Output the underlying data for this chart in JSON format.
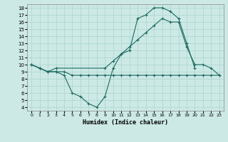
{
  "xlabel": "Humidex (Indice chaleur)",
  "bg_color": "#cce9e5",
  "grid_color": "#aad4ce",
  "line_color": "#1a6b60",
  "xlim": [
    -0.5,
    23.5
  ],
  "ylim": [
    3.5,
    18.5
  ],
  "xticks": [
    0,
    1,
    2,
    3,
    4,
    5,
    6,
    7,
    8,
    9,
    10,
    11,
    12,
    13,
    14,
    15,
    16,
    17,
    18,
    19,
    20,
    21,
    22,
    23
  ],
  "yticks": [
    4,
    5,
    6,
    7,
    8,
    9,
    10,
    11,
    12,
    13,
    14,
    15,
    16,
    17,
    18
  ],
  "curve1_x": [
    0,
    1,
    2,
    3,
    4,
    5,
    6,
    7,
    8,
    9,
    10,
    11,
    12,
    13,
    14,
    15,
    16,
    17,
    18,
    19,
    20
  ],
  "curve1_y": [
    10,
    9.5,
    9.0,
    9.0,
    8.5,
    6.0,
    5.5,
    4.5,
    4.0,
    5.5,
    9.5,
    11.5,
    12.0,
    16.5,
    17.0,
    18.0,
    18.0,
    17.5,
    16.5,
    13.0,
    9.5
  ],
  "curve2_x": [
    0,
    1,
    2,
    3,
    9,
    10,
    11,
    12,
    13,
    14,
    15,
    16,
    17,
    18,
    19,
    20,
    21,
    22,
    23
  ],
  "curve2_y": [
    10,
    9.5,
    9.0,
    9.5,
    9.5,
    10.5,
    11.5,
    12.5,
    13.5,
    14.5,
    15.5,
    16.5,
    16.0,
    16.0,
    12.5,
    10.0,
    10.0,
    9.5,
    8.5
  ],
  "curve3_x": [
    0,
    1,
    2,
    3,
    4,
    5,
    6,
    7,
    8,
    9,
    10,
    11,
    12,
    13,
    14,
    15,
    16,
    17,
    18,
    19,
    20,
    21,
    22,
    23
  ],
  "curve3_y": [
    10,
    9.5,
    9.0,
    9.0,
    9.0,
    8.5,
    8.5,
    8.5,
    8.5,
    8.5,
    8.5,
    8.5,
    8.5,
    8.5,
    8.5,
    8.5,
    8.5,
    8.5,
    8.5,
    8.5,
    8.5,
    8.5,
    8.5,
    8.5
  ]
}
